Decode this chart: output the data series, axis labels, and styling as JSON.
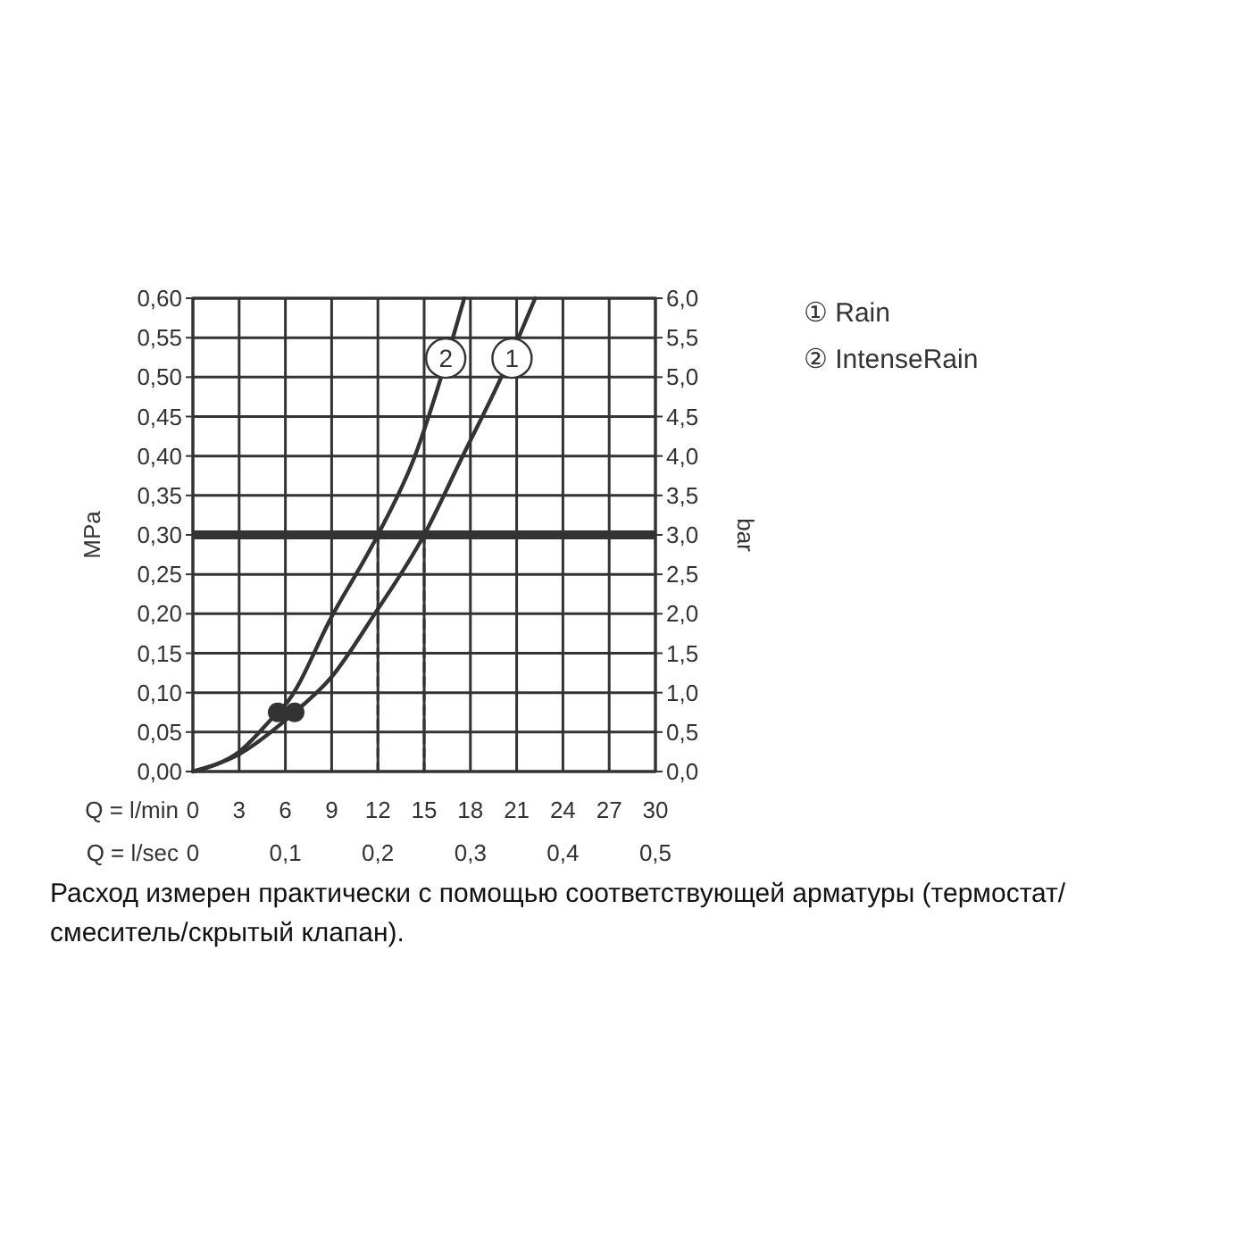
{
  "chart_data": {
    "type": "line",
    "xlabel": "Q = l/min",
    "x2label": "Q = l/sec",
    "ylabel": "MPa",
    "y2label": "bar",
    "xlim": [
      0,
      30
    ],
    "xticks": [
      0,
      3,
      6,
      9,
      12,
      15,
      18,
      21,
      24,
      27,
      30
    ],
    "x2lim": [
      0,
      0.5
    ],
    "x2ticks": [
      {
        "value": 0,
        "label": "0"
      },
      {
        "value": 0.1,
        "label": "0,1"
      },
      {
        "value": 0.2,
        "label": "0,2"
      },
      {
        "value": 0.3,
        "label": "0,3"
      },
      {
        "value": 0.4,
        "label": "0,4"
      },
      {
        "value": 0.5,
        "label": "0,5"
      }
    ],
    "ylim": [
      0,
      0.6
    ],
    "yticks": [
      {
        "value": 0,
        "label": "0,00"
      },
      {
        "value": 0.05,
        "label": "0,05"
      },
      {
        "value": 0.1,
        "label": "0,10"
      },
      {
        "value": 0.15,
        "label": "0,15"
      },
      {
        "value": 0.2,
        "label": "0,20"
      },
      {
        "value": 0.25,
        "label": "0,25"
      },
      {
        "value": 0.3,
        "label": "0,30"
      },
      {
        "value": 0.35,
        "label": "0,35"
      },
      {
        "value": 0.4,
        "label": "0,40"
      },
      {
        "value": 0.45,
        "label": "0,45"
      },
      {
        "value": 0.5,
        "label": "0,50"
      },
      {
        "value": 0.55,
        "label": "0,55"
      },
      {
        "value": 0.6,
        "label": "0,60"
      }
    ],
    "y2lim": [
      0,
      6
    ],
    "y2ticks": [
      {
        "value": 0,
        "label": "0,0"
      },
      {
        "value": 0.5,
        "label": "0,5"
      },
      {
        "value": 1,
        "label": "1,0"
      },
      {
        "value": 1.5,
        "label": "1,5"
      },
      {
        "value": 2,
        "label": "2,0"
      },
      {
        "value": 2.5,
        "label": "2,5"
      },
      {
        "value": 3,
        "label": "3,0"
      },
      {
        "value": 3.5,
        "label": "3,5"
      },
      {
        "value": 4,
        "label": "4,0"
      },
      {
        "value": 4.5,
        "label": "4,5"
      },
      {
        "value": 5,
        "label": "5,0"
      },
      {
        "value": 5.5,
        "label": "5,5"
      },
      {
        "value": 6,
        "label": "6,0"
      }
    ],
    "grid": true,
    "legend": "top right",
    "line_style": "solid",
    "series": [
      {
        "name": "① Rain",
        "color": "#333333",
        "x": [
          0,
          3,
          6,
          6.6,
          9,
          11.8,
          15,
          17.5,
          20,
          22.2
        ],
        "values": [
          0,
          0.022,
          0.065,
          0.075,
          0.12,
          0.2,
          0.3,
          0.4,
          0.5,
          0.6
        ]
      },
      {
        "name": "② IntenseRain",
        "color": "#333333",
        "x": [
          0,
          3,
          5.5,
          6,
          9.1,
          12,
          14.4,
          16.1,
          17.6
        ],
        "values": [
          0,
          0.025,
          0.075,
          0.085,
          0.2,
          0.3,
          0.4,
          0.5,
          0.6
        ]
      },
      {
        "type": "line",
        "color": "#333333",
        "line_style": "dashed",
        "x": [
          12,
          12
        ],
        "values": [
          0,
          0.3
        ]
      },
      {
        "type": "line",
        "color": "#333333",
        "line_style": "dashed",
        "x": [
          15,
          15
        ],
        "values": [
          0,
          0.3
        ]
      },
      {
        "type": "scatter",
        "color": "#333333",
        "marker": "circle",
        "x": [
          5.5,
          6.6
        ],
        "values": [
          0.075,
          0.075
        ]
      }
    ],
    "ref_lines": [
      {
        "axis": "y",
        "value": 0.3,
        "color": "#333333"
      }
    ],
    "annotations": [
      {
        "text": "1",
        "x": 20.7,
        "y": 0.524
      },
      {
        "text": "2",
        "x": 16.4,
        "y": 0.524
      },
      "Расход измерен практически с помощью соответствующей арматуры (термостат/смеситель/скрытый клапан)."
    ]
  }
}
